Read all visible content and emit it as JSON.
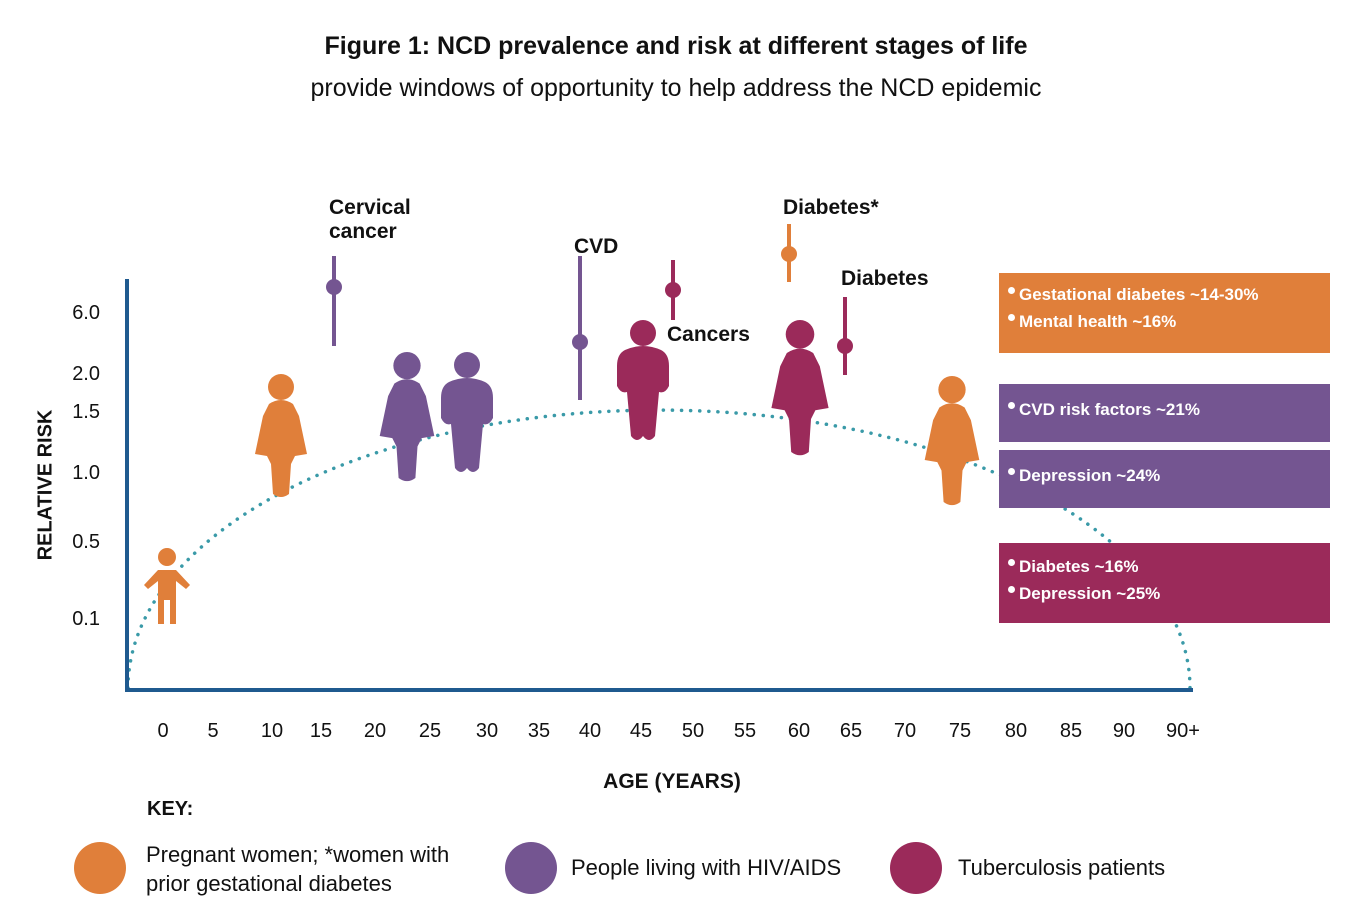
{
  "title": "Figure 1: NCD prevalence and risk at different stages of life",
  "subtitle": "provide windows of opportunity to help address the NCD epidemic",
  "y_axis": {
    "label": "RELATIVE RISK",
    "ticks": [
      "6.0",
      "2.0",
      "1.5",
      "1.0",
      "0.5",
      "0.1"
    ]
  },
  "x_axis": {
    "label": "AGE (YEARS)",
    "ticks": [
      "0",
      "5",
      "10",
      "15",
      "20",
      "25",
      "30",
      "35",
      "40",
      "45",
      "50",
      "55",
      "60",
      "65",
      "70",
      "75",
      "80",
      "85",
      "90",
      "90+"
    ]
  },
  "annotations": [
    "Cervical cancer",
    "CVD",
    "Diabetes*",
    "Cancers",
    "Diabetes"
  ],
  "boxes": [
    {
      "items": [
        "Gestational diabetes ~14-30%",
        "Mental health ~16%"
      ]
    },
    {
      "items": [
        "CVD risk factors ~21%"
      ]
    },
    {
      "items": [
        "Depression ~24%"
      ]
    },
    {
      "items": [
        "Diabetes ~16%",
        "Depression ~25%"
      ]
    }
  ],
  "key": {
    "title": "KEY:",
    "items": [
      "Pregnant women; *women with prior gestational diabetes",
      "People living with HIV/AIDS",
      "Tuberculosis patients"
    ]
  }
}
